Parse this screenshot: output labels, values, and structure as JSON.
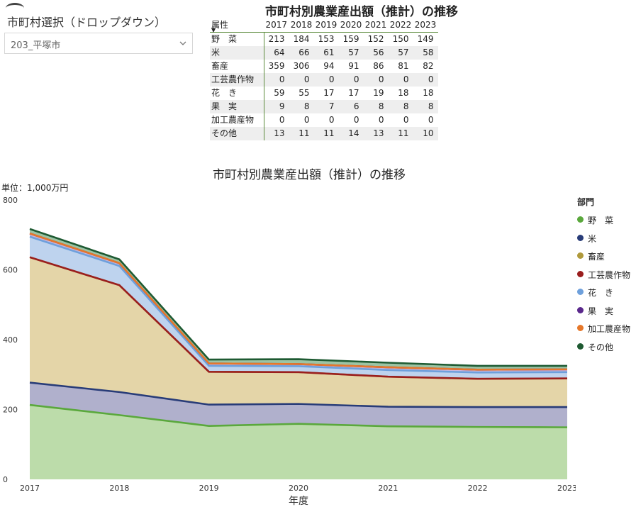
{
  "slicer": {
    "title": "市町村選択（ドロップダウン）",
    "value": "203_平塚市"
  },
  "table": {
    "title": "市町村別農業産出額（推計）の推移",
    "row_header": "属性",
    "years": [
      "2017",
      "2018",
      "2019",
      "2020",
      "2021",
      "2022",
      "2023"
    ],
    "rows": [
      {
        "label": "野　菜",
        "values": [
          213,
          184,
          153,
          159,
          152,
          150,
          149
        ]
      },
      {
        "label": "米",
        "values": [
          64,
          66,
          61,
          57,
          56,
          57,
          58
        ]
      },
      {
        "label": "畜産",
        "values": [
          359,
          306,
          94,
          91,
          86,
          81,
          82
        ]
      },
      {
        "label": "工芸農作物",
        "values": [
          0,
          0,
          0,
          0,
          0,
          0,
          0
        ]
      },
      {
        "label": "花　き",
        "values": [
          59,
          55,
          17,
          17,
          19,
          18,
          18
        ]
      },
      {
        "label": "果　実",
        "values": [
          9,
          8,
          7,
          6,
          8,
          8,
          8
        ]
      },
      {
        "label": "加工農産物",
        "values": [
          0,
          0,
          0,
          0,
          0,
          0,
          0
        ]
      },
      {
        "label": "その他",
        "values": [
          13,
          11,
          11,
          14,
          13,
          11,
          10
        ]
      }
    ]
  },
  "chart_data": {
    "type": "area",
    "stacked": true,
    "title": "市町村別農業産出額（推計）の推移",
    "unit_label": "単位：1,000万円",
    "xlabel": "年度",
    "ylabel": "",
    "x": [
      "2017",
      "2018",
      "2019",
      "2020",
      "2021",
      "2022",
      "2023"
    ],
    "ylim": [
      0,
      800
    ],
    "yticks": [
      0,
      200,
      400,
      600,
      800
    ],
    "legend_title": "部門",
    "legend_position": "right",
    "grid": false,
    "series": [
      {
        "name": "野　菜",
        "color": "#5aa83c",
        "fill": "#bcdcaa",
        "values": [
          213,
          184,
          153,
          159,
          152,
          150,
          149
        ]
      },
      {
        "name": "米",
        "color": "#283c78",
        "fill": "#b0b0cc",
        "values": [
          64,
          66,
          61,
          57,
          56,
          57,
          58
        ]
      },
      {
        "name": "畜産",
        "color": "#b09a3c",
        "fill": "#e4d5a8",
        "values": [
          359,
          306,
          94,
          91,
          86,
          81,
          82
        ]
      },
      {
        "name": "工芸農作物",
        "color": "#9a1e1e",
        "fill": "#d9a0a0",
        "values": [
          0,
          0,
          0,
          0,
          0,
          0,
          0
        ]
      },
      {
        "name": "花　き",
        "color": "#6ea0dc",
        "fill": "#bed3ee",
        "values": [
          59,
          55,
          17,
          17,
          19,
          18,
          18
        ]
      },
      {
        "name": "果　実",
        "color": "#5a288c",
        "fill": "#c8b4dc",
        "values": [
          9,
          8,
          7,
          6,
          8,
          8,
          8
        ]
      },
      {
        "name": "加工農産物",
        "color": "#e6782a",
        "fill": "#f2c09a",
        "values": [
          0,
          0,
          0,
          0,
          0,
          0,
          0
        ]
      },
      {
        "name": "その他",
        "color": "#1e5a32",
        "fill": "#9cc4a4",
        "values": [
          13,
          11,
          11,
          14,
          13,
          11,
          10
        ]
      }
    ]
  }
}
